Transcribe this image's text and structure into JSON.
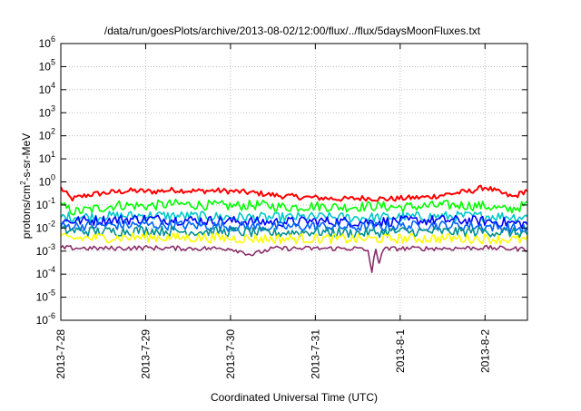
{
  "chart_data": {
    "type": "line",
    "title": "/data/run/goesPlots/archive/2013-08-02/12:00/flux/../flux/5daysMoonFluxes.txt",
    "xlabel": "Coordinated Universal Time (UTC)",
    "ylabel": "protons/cm2-s-sr-MeV",
    "ylabel_parts": [
      "protons/cm",
      "2",
      "-s-sr-MeV"
    ],
    "y_scale": "log",
    "ylim": [
      1e-06,
      1000000.0
    ],
    "y_ticks": [
      {
        "value": 1e-06,
        "base": "10",
        "exp": "-6"
      },
      {
        "value": 1e-05,
        "base": "10",
        "exp": "-5"
      },
      {
        "value": 0.0001,
        "base": "10",
        "exp": "-4"
      },
      {
        "value": 0.001,
        "base": "10",
        "exp": "-3"
      },
      {
        "value": 0.01,
        "base": "10",
        "exp": "-2"
      },
      {
        "value": 0.1,
        "base": "10",
        "exp": "-1"
      },
      {
        "value": 1,
        "base": "10",
        "exp": "0"
      },
      {
        "value": 10,
        "base": "10",
        "exp": "1"
      },
      {
        "value": 100,
        "base": "10",
        "exp": "2"
      },
      {
        "value": 1000,
        "base": "10",
        "exp": "3"
      },
      {
        "value": 10000,
        "base": "10",
        "exp": "4"
      },
      {
        "value": 100000,
        "base": "10",
        "exp": "5"
      },
      {
        "value": 1000000,
        "base": "10",
        "exp": "6"
      }
    ],
    "xlim": [
      "2013-07-28",
      "2013-08-02T12:00"
    ],
    "x_ticks": [
      "2013-7-28",
      "2013-7-29",
      "2013-7-30",
      "2013-7-31",
      "2013-8-1",
      "2013-8-2"
    ],
    "grid": true,
    "colors": {
      "red": "#ff0000",
      "green": "#00ff00",
      "cyan": "#00c8c8",
      "blue": "#0000ff",
      "light_blue": "#0064ff",
      "teal": "#009090",
      "yellow": "#ffff00",
      "purple": "#8b2f6a",
      "grid": "#b0b0b0"
    },
    "series": [
      {
        "color": "#ff0000",
        "values": [
          [
            "2013-07-28T00:00",
            0.55
          ],
          [
            "2013-07-28T03:00",
            0.18
          ],
          [
            "2013-07-28T08:00",
            0.28
          ],
          [
            "2013-07-28T14:00",
            0.35
          ],
          [
            "2013-07-28T20:00",
            0.42
          ],
          [
            "2013-07-29T02:00",
            0.38
          ],
          [
            "2013-07-29T08:00",
            0.45
          ],
          [
            "2013-07-29T14:00",
            0.4
          ],
          [
            "2013-07-29T20:00",
            0.42
          ],
          [
            "2013-07-30T02:00",
            0.38
          ],
          [
            "2013-07-30T08:00",
            0.32
          ],
          [
            "2013-07-30T14:00",
            0.25
          ],
          [
            "2013-07-30T20:00",
            0.22
          ],
          [
            "2013-07-31T02:00",
            0.2
          ],
          [
            "2013-07-31T08:00",
            0.18
          ],
          [
            "2013-07-31T14:00",
            0.2
          ],
          [
            "2013-07-31T20:00",
            0.18
          ],
          [
            "2013-08-01T02:00",
            0.2
          ],
          [
            "2013-08-01T08:00",
            0.22
          ],
          [
            "2013-08-01T14:00",
            0.3
          ],
          [
            "2013-08-01T20:00",
            0.4
          ],
          [
            "2013-08-02T00:00",
            0.6
          ],
          [
            "2013-08-02T04:00",
            0.35
          ],
          [
            "2013-08-02T08:00",
            0.22
          ],
          [
            "2013-08-02T12:00",
            0.45
          ]
        ]
      },
      {
        "color": "#00ff00",
        "values": [
          [
            "2013-07-28T00:00",
            0.09
          ],
          [
            "2013-07-28T04:00",
            0.05
          ],
          [
            "2013-07-28T10:00",
            0.07
          ],
          [
            "2013-07-28T16:00",
            0.1
          ],
          [
            "2013-07-29T00:00",
            0.09
          ],
          [
            "2013-07-29T08:00",
            0.11
          ],
          [
            "2013-07-29T16:00",
            0.1
          ],
          [
            "2013-07-30T00:00",
            0.09
          ],
          [
            "2013-07-30T08:00",
            0.1
          ],
          [
            "2013-07-30T16:00",
            0.08
          ],
          [
            "2013-07-31T00:00",
            0.09
          ],
          [
            "2013-07-31T08:00",
            0.08
          ],
          [
            "2013-07-31T16:00",
            0.09
          ],
          [
            "2013-08-01T00:00",
            0.08
          ],
          [
            "2013-08-01T08:00",
            0.09
          ],
          [
            "2013-08-01T16:00",
            0.1
          ],
          [
            "2013-08-02T00:00",
            0.09
          ],
          [
            "2013-08-02T06:00",
            0.06
          ],
          [
            "2013-08-02T12:00",
            0.1
          ]
        ]
      },
      {
        "color": "#00c8c8",
        "values": [
          [
            "2013-07-28T00:00",
            0.03
          ],
          [
            "2013-07-28T12:00",
            0.032
          ],
          [
            "2013-07-29T00:00",
            0.035
          ],
          [
            "2013-07-29T12:00",
            0.033
          ],
          [
            "2013-07-30T00:00",
            0.03
          ],
          [
            "2013-07-30T12:00",
            0.028
          ],
          [
            "2013-07-31T00:00",
            0.03
          ],
          [
            "2013-07-31T12:00",
            0.028
          ],
          [
            "2013-08-01T00:00",
            0.03
          ],
          [
            "2013-08-01T12:00",
            0.032
          ],
          [
            "2013-08-02T00:00",
            0.033
          ],
          [
            "2013-08-02T12:00",
            0.03
          ]
        ]
      },
      {
        "color": "#0000ff",
        "values": [
          [
            "2013-07-28T00:00",
            0.02
          ],
          [
            "2013-07-28T12:00",
            0.022
          ],
          [
            "2013-07-29T00:00",
            0.025
          ],
          [
            "2013-07-29T12:00",
            0.022
          ],
          [
            "2013-07-30T00:00",
            0.02
          ],
          [
            "2013-07-30T12:00",
            0.018
          ],
          [
            "2013-07-31T00:00",
            0.02
          ],
          [
            "2013-07-31T12:00",
            0.018
          ],
          [
            "2013-08-01T00:00",
            0.02
          ],
          [
            "2013-08-01T12:00",
            0.022
          ],
          [
            "2013-08-02T00:00",
            0.02
          ],
          [
            "2013-08-02T12:00",
            0.015
          ]
        ]
      },
      {
        "color": "#0064ff",
        "values": [
          [
            "2013-07-28T00:00",
            0.012
          ],
          [
            "2013-07-28T12:00",
            0.013
          ],
          [
            "2013-07-29T00:00",
            0.014
          ],
          [
            "2013-07-29T12:00",
            0.013
          ],
          [
            "2013-07-30T00:00",
            0.012
          ],
          [
            "2013-07-30T12:00",
            0.011
          ],
          [
            "2013-07-31T00:00",
            0.012
          ],
          [
            "2013-07-31T12:00",
            0.011
          ],
          [
            "2013-08-01T00:00",
            0.012
          ],
          [
            "2013-08-01T12:00",
            0.013
          ],
          [
            "2013-08-02T00:00",
            0.012
          ],
          [
            "2013-08-02T12:00",
            0.009
          ]
        ]
      },
      {
        "color": "#009090",
        "values": [
          [
            "2013-07-28T00:00",
            0.008
          ],
          [
            "2013-07-28T12:00",
            0.007
          ],
          [
            "2013-07-29T00:00",
            0.008
          ],
          [
            "2013-07-29T12:00",
            0.007
          ],
          [
            "2013-07-30T00:00",
            0.007
          ],
          [
            "2013-07-30T12:00",
            0.006
          ],
          [
            "2013-07-31T00:00",
            0.007
          ],
          [
            "2013-07-31T12:00",
            0.006
          ],
          [
            "2013-08-01T00:00",
            0.007
          ],
          [
            "2013-08-01T12:00",
            0.007
          ],
          [
            "2013-08-02T00:00",
            0.007
          ],
          [
            "2013-08-02T12:00",
            0.006
          ]
        ]
      },
      {
        "color": "#ffff00",
        "values": [
          [
            "2013-07-28T00:00",
            0.0035
          ],
          [
            "2013-07-28T12:00",
            0.0038
          ],
          [
            "2013-07-29T00:00",
            0.004
          ],
          [
            "2013-07-29T12:00",
            0.0038
          ],
          [
            "2013-07-30T00:00",
            0.0036
          ],
          [
            "2013-07-30T12:00",
            0.0034
          ],
          [
            "2013-07-31T00:00",
            0.0035
          ],
          [
            "2013-07-31T12:00",
            0.0033
          ],
          [
            "2013-08-01T00:00",
            0.0035
          ],
          [
            "2013-08-01T12:00",
            0.0036
          ],
          [
            "2013-08-02T00:00",
            0.0035
          ],
          [
            "2013-08-02T12:00",
            0.003
          ]
        ]
      },
      {
        "color": "#8b2f6a",
        "values": [
          [
            "2013-07-28T00:00",
            0.0014
          ],
          [
            "2013-07-28T12:00",
            0.0013
          ],
          [
            "2013-07-29T00:00",
            0.0014
          ],
          [
            "2013-07-29T12:00",
            0.0013
          ],
          [
            "2013-07-30T00:00",
            0.0013
          ],
          [
            "2013-07-30T06:00",
            0.0007
          ],
          [
            "2013-07-30T12:00",
            0.0013
          ],
          [
            "2013-07-31T00:00",
            0.0013
          ],
          [
            "2013-07-31T12:00",
            0.0013
          ],
          [
            "2013-07-31T15:00",
            0.001
          ],
          [
            "2013-07-31T16:00",
            0.00012
          ],
          [
            "2013-07-31T17:00",
            0.0012
          ],
          [
            "2013-07-31T18:00",
            0.0003
          ],
          [
            "2013-07-31T19:00",
            0.0012
          ],
          [
            "2013-08-01T00:00",
            0.0013
          ],
          [
            "2013-08-01T12:00",
            0.0013
          ],
          [
            "2013-08-02T00:00",
            0.0014
          ],
          [
            "2013-08-02T12:00",
            0.0012
          ]
        ]
      }
    ]
  }
}
